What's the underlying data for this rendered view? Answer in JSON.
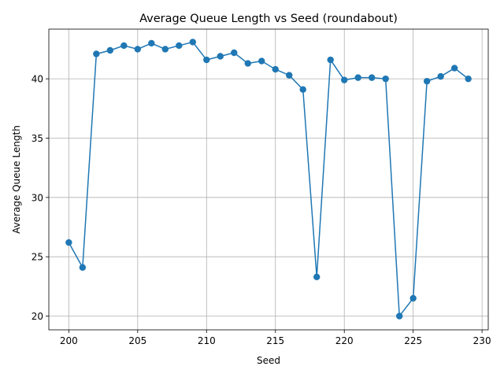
{
  "chart_data": {
    "type": "line",
    "title": "Average Queue Length vs Seed (roundabout)",
    "xlabel": "Seed",
    "ylabel": "Average Queue Length",
    "xlim": [
      198.55,
      230.45
    ],
    "ylim": [
      18.84,
      44.19
    ],
    "grid": true,
    "line_color": "#1f77b4",
    "marker": "circle",
    "xticks": [
      200,
      205,
      210,
      215,
      220,
      225,
      230
    ],
    "yticks": [
      20,
      25,
      30,
      35,
      40
    ],
    "x": [
      200,
      201,
      202,
      203,
      204,
      205,
      206,
      207,
      208,
      209,
      210,
      211,
      212,
      213,
      214,
      215,
      216,
      217,
      218,
      219,
      220,
      221,
      222,
      223,
      224,
      225,
      226,
      227,
      228,
      229
    ],
    "y": [
      26.2,
      24.1,
      42.1,
      42.4,
      42.8,
      42.5,
      43.0,
      42.5,
      42.8,
      43.1,
      41.6,
      41.9,
      42.2,
      41.3,
      41.5,
      40.8,
      40.3,
      39.1,
      23.3,
      41.6,
      39.9,
      40.1,
      40.1,
      40.0,
      20.0,
      21.5,
      39.8,
      40.2,
      40.9,
      40.0
    ]
  }
}
